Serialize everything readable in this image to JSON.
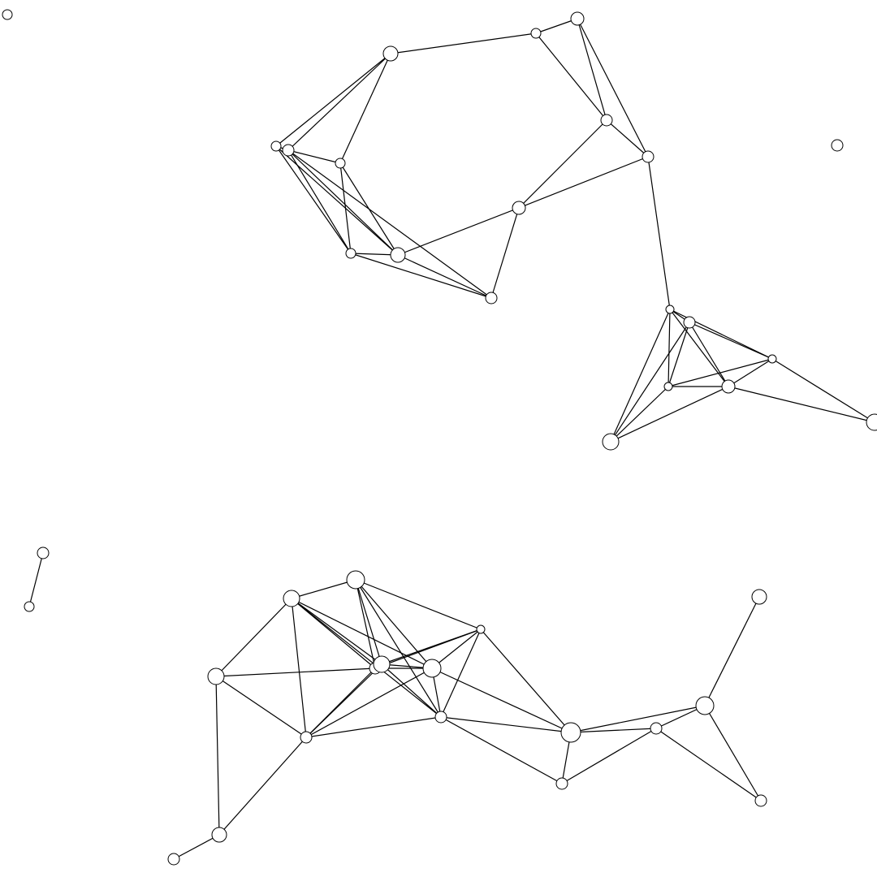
{
  "graph": {
    "node_count": 45,
    "edge_count": 101,
    "components": [
      {
        "nodes": [
          "n0"
        ]
      },
      {
        "nodes": [
          "n44"
        ]
      },
      {
        "nodes": [
          "n39",
          "n40"
        ]
      },
      {
        "nodes": [
          "n1",
          "n2",
          "n3",
          "n4",
          "n5",
          "n6",
          "n7",
          "n8",
          "n9",
          "n10",
          "n11",
          "n12",
          "n13",
          "n14",
          "n15",
          "n16",
          "n17",
          "n18",
          "n19",
          "n20"
        ]
      },
      {
        "nodes": [
          "n21",
          "n22",
          "n23",
          "n24",
          "n25",
          "n26",
          "n27",
          "n28",
          "n29",
          "n30",
          "n31",
          "n32",
          "n33",
          "n34",
          "n35",
          "n36",
          "n37",
          "n38",
          "n41",
          "n42",
          "n43"
        ]
      }
    ],
    "node_style": {
      "fill": "#ffffff",
      "stroke": "#000000"
    },
    "edge_style": {
      "stroke": "#000000"
    }
  }
}
